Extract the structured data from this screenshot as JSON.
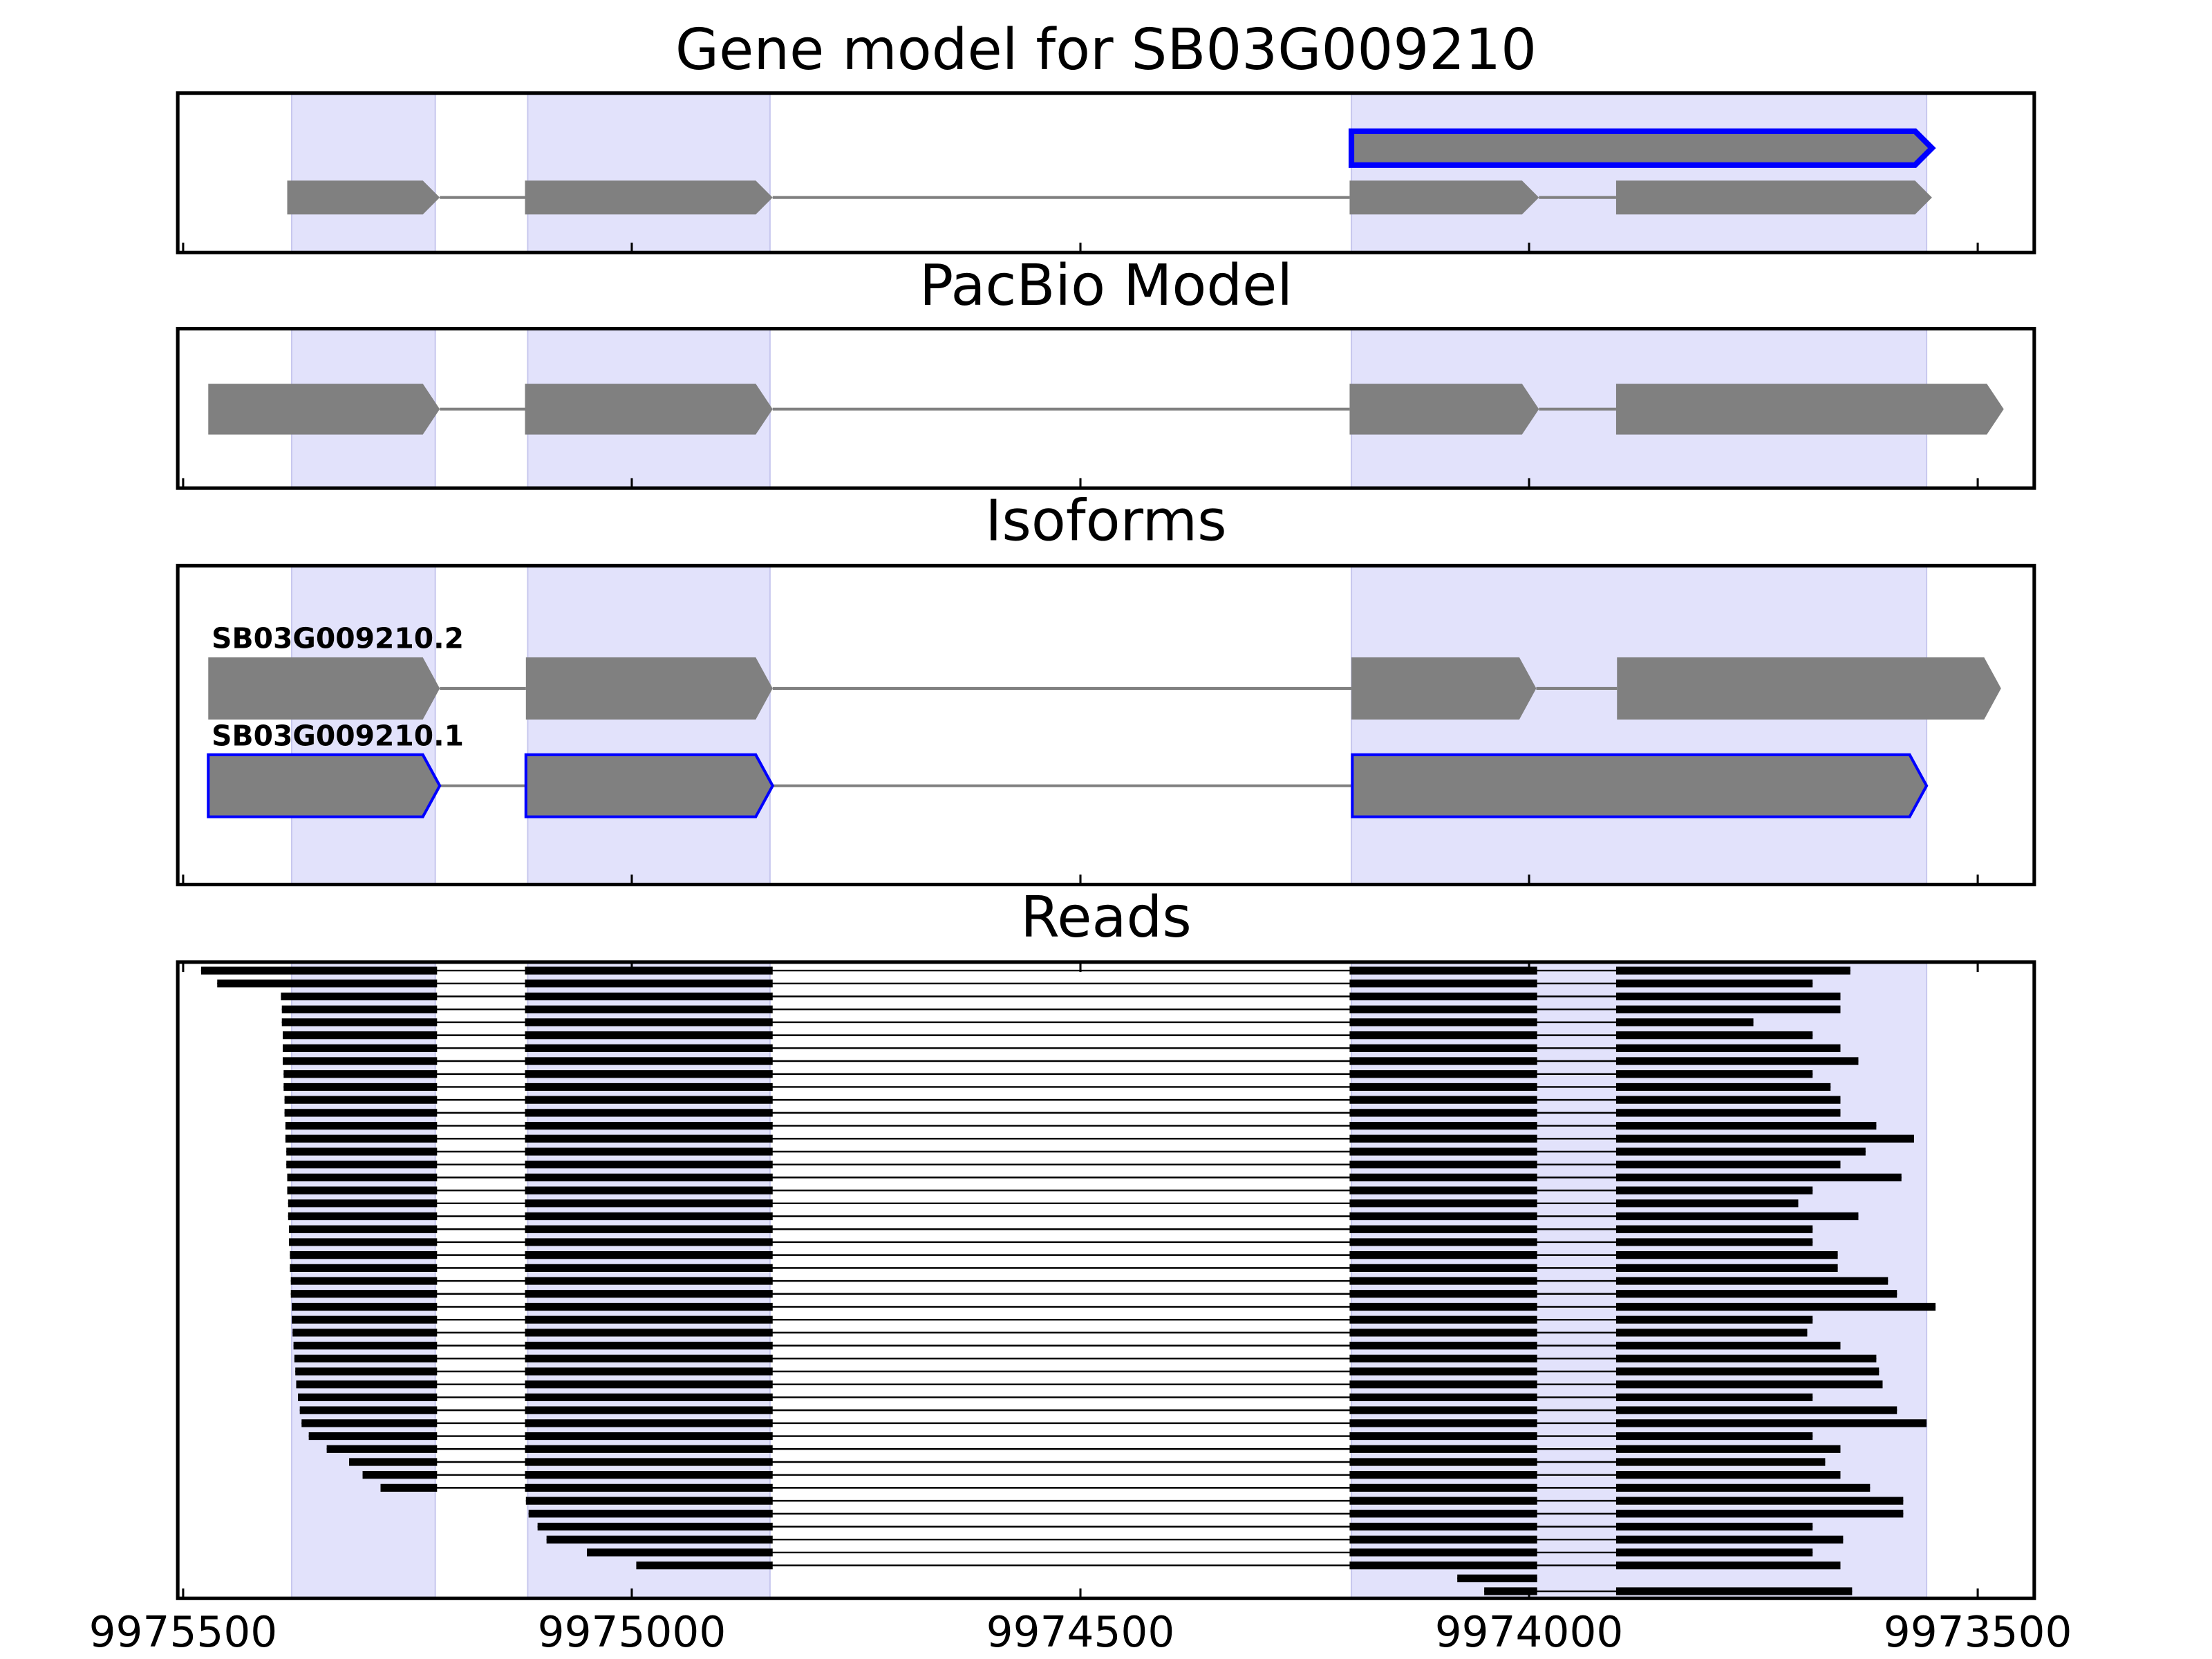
{
  "chart_data": [
    {
      "type": "transcripts",
      "title": "Gene model for SB03G009210",
      "transcripts": [
        {
          "exons": [
            [
              9974198,
              9973551
            ]
          ],
          "color": "#808080",
          "edgecolor": "#0000ff"
        },
        {
          "exons": [
            [
              9975384,
              9975214
            ],
            [
              9975119,
              9974843
            ],
            [
              9974200,
              9973989
            ],
            [
              9973903,
              9973551
            ]
          ],
          "color": "#808080"
        }
      ]
    },
    {
      "type": "transcripts",
      "title": "PacBio Model",
      "transcripts": [
        {
          "exons": [
            [
              9975472,
              9975214
            ],
            [
              9975119,
              9974843
            ],
            [
              9974200,
              9973989
            ],
            [
              9973903,
              9973471
            ]
          ],
          "color": "#808080"
        }
      ]
    },
    {
      "type": "transcripts",
      "title": "Isoforms",
      "transcripts": [
        {
          "name": "SB03G009210.2",
          "exons": [
            [
              9975472,
              9975214
            ],
            [
              9975118,
              9974843
            ],
            [
              9974198,
              9973992
            ],
            [
              9973902,
              9973474
            ]
          ],
          "color": "#808080"
        },
        {
          "name": "SB03G009210.1",
          "exons": [
            [
              9975472,
              9975214
            ],
            [
              9975118,
              9974843
            ],
            [
              9974197,
              9973557
            ]
          ],
          "color": "#808080",
          "edgecolor": "#0000ff"
        }
      ]
    },
    {
      "type": "reads",
      "title": "Reads",
      "xlim": [
        9975506,
        9973437
      ],
      "xticks": [
        9975500,
        9975000,
        9974500,
        9974000,
        9973500
      ],
      "shaded": [
        [
          9975379,
          9975219
        ],
        [
          9975116,
          9974846
        ],
        [
          9974198,
          9973557
        ]
      ],
      "shade_color": "#e2e2fb",
      "read_color": "#000000",
      "read_introns": [
        [
          9975217,
          9975119
        ],
        [
          9974843,
          9974200
        ],
        [
          9973991,
          9973903
        ]
      ],
      "reads": [
        [
          9975480,
          9973642
        ],
        [
          9975462,
          9973684
        ],
        [
          9975391,
          9973653
        ],
        [
          9975390,
          9973653
        ],
        [
          9975390,
          9973750
        ],
        [
          9975389,
          9973684
        ],
        [
          9975389,
          9973653
        ],
        [
          9975389,
          9973633
        ],
        [
          9975388,
          9973684
        ],
        [
          9975388,
          9973664
        ],
        [
          9975387,
          9973653
        ],
        [
          9975387,
          9973653
        ],
        [
          9975386,
          9973613
        ],
        [
          9975386,
          9973571
        ],
        [
          9975385,
          9973625
        ],
        [
          9975385,
          9973653
        ],
        [
          9975384,
          9973585
        ],
        [
          9975384,
          9973684
        ],
        [
          9975383,
          9973700
        ],
        [
          9975383,
          9973633
        ],
        [
          9975382,
          9973684
        ],
        [
          9975382,
          9973684
        ],
        [
          9975381,
          9973656
        ],
        [
          9975381,
          9973656
        ],
        [
          9975380,
          9973600
        ],
        [
          9975380,
          9973590
        ],
        [
          9975379,
          9973547
        ],
        [
          9975379,
          9973684
        ],
        [
          9975378,
          9973690
        ],
        [
          9975377,
          9973653
        ],
        [
          9975376,
          9973613
        ],
        [
          9975375,
          9973610
        ],
        [
          9975374,
          9973606
        ],
        [
          9975372,
          9973684
        ],
        [
          9975370,
          9973590
        ],
        [
          9975368,
          9973557
        ],
        [
          9975360,
          9973684
        ],
        [
          9975340,
          9973653
        ],
        [
          9975315,
          9973670
        ],
        [
          9975300,
          9973653
        ],
        [
          9975280,
          9973620
        ],
        [
          9975118,
          9973583
        ],
        [
          9975115,
          9973583
        ],
        [
          9975105,
          9973684
        ],
        [
          9975095,
          9973650
        ],
        [
          9975050,
          9973684
        ],
        [
          9974995,
          9973653
        ],
        [
          9974080,
          9973991
        ],
        [
          9974050,
          9973640
        ]
      ]
    }
  ]
}
